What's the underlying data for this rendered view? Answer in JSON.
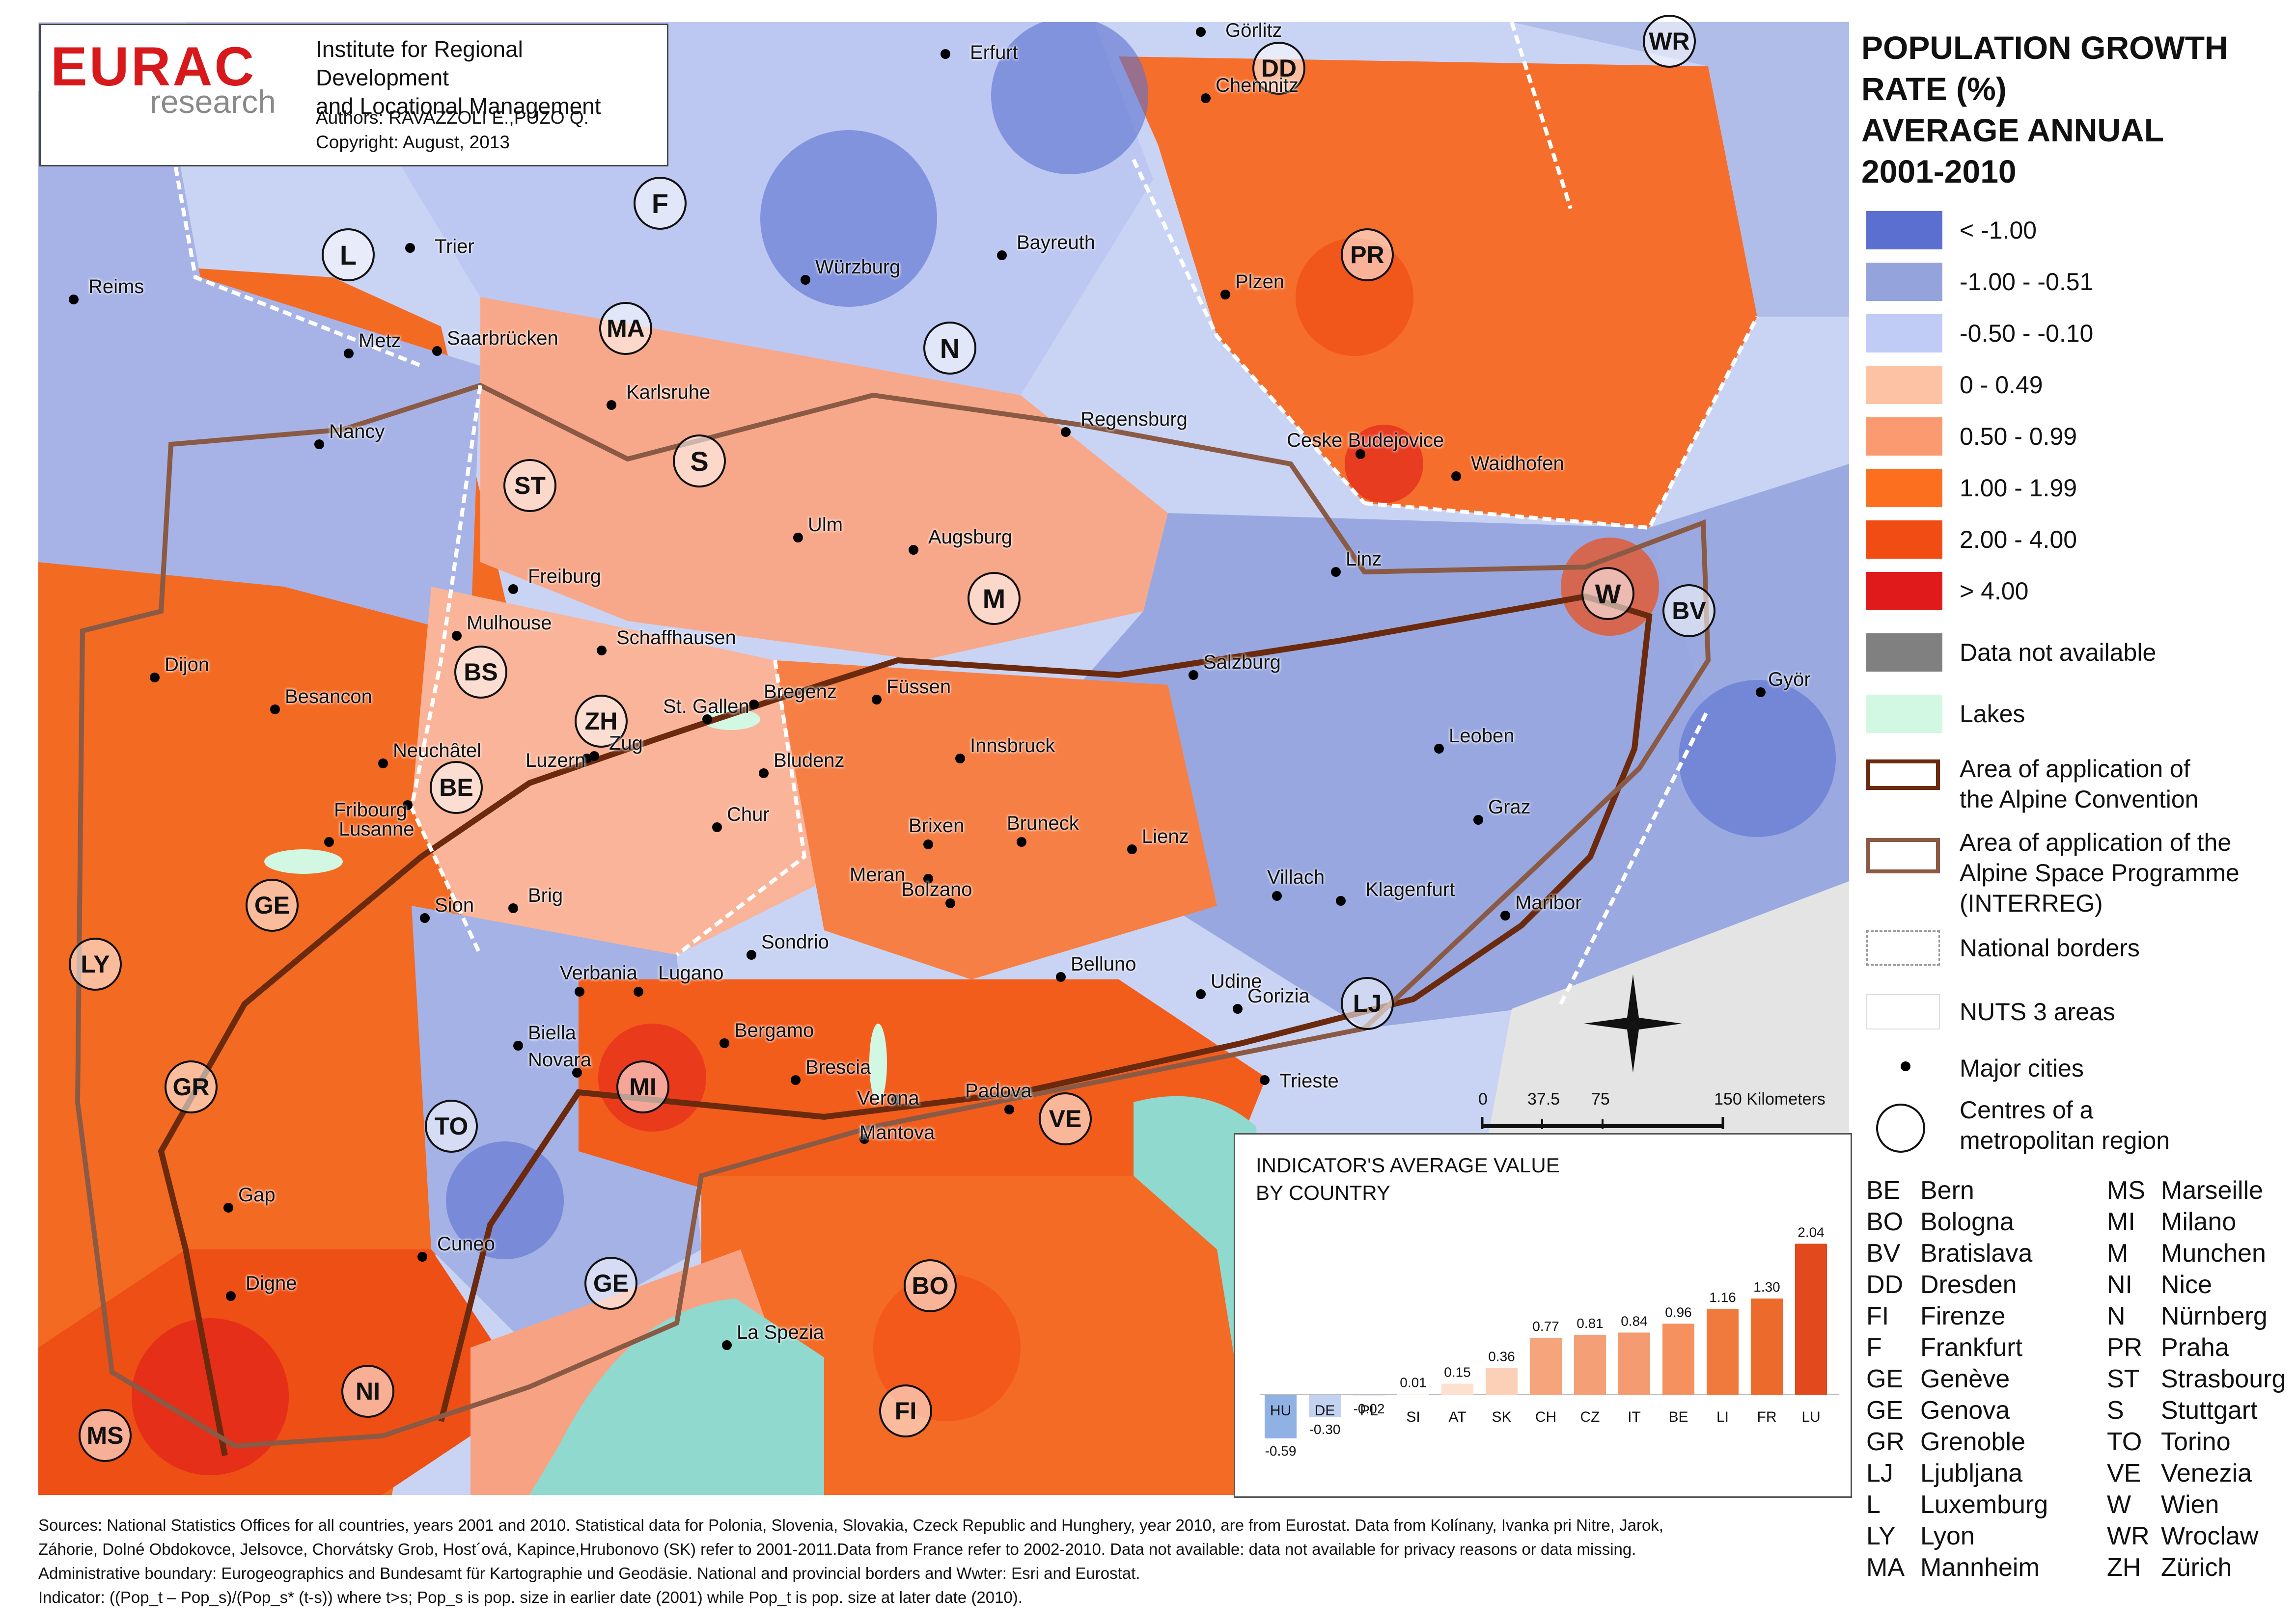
{
  "header": {
    "logo": "EURAC",
    "logo_sub": "research",
    "institute_line1": "Institute for Regional Development",
    "institute_line2": "and Locational Management",
    "authors": "Authors: RAVAZZOLI E.,PUZO Q.",
    "copyright": "Copyright: August, 2013"
  },
  "legend": {
    "title_lines": [
      "POPULATION GROWTH",
      "RATE (%)",
      "AVERAGE ANNUAL",
      "2001-2010"
    ],
    "classes": [
      {
        "label": "< -1.00",
        "color": "#5b6fd1"
      },
      {
        "label": "-1.00 - -0.51",
        "color": "#94a3dc"
      },
      {
        "label": "-0.50 - -0.10",
        "color": "#c0ccf5"
      },
      {
        "label": "0  - 0.49",
        "color": "#fcc2a3"
      },
      {
        "label": "0.50 - 0.99",
        "color": "#fb9a70"
      },
      {
        "label": "1.00 - 1.99",
        "color": "#fb6f1f"
      },
      {
        "label": "2.00 - 4.00",
        "color": "#f04c14"
      },
      {
        "label": "> 4.00",
        "color": "#e01a1a"
      },
      {
        "label": "Data not available",
        "color": "#808080"
      },
      {
        "label": "Lakes",
        "color": "#d2f7e2"
      }
    ],
    "alpine_convention_line1": "Area of application of",
    "alpine_convention_line2": "the Alpine Convention",
    "alpine_space_line1": "Area of application of the",
    "alpine_space_line2": "Alpine Space Programme",
    "alpine_space_line3": "(INTERREG)",
    "national_borders": "National borders",
    "nuts3": "NUTS 3 areas",
    "major_cities": "Major cities",
    "metro_centres_line1": "Centres of a",
    "metro_centres_line2": "metropolitan region",
    "colors": {
      "alpine_convention": "#6b2a0d",
      "alpine_space": "#8a5a45"
    }
  },
  "abbreviations_left": [
    {
      "code": "BE",
      "name": "Bern"
    },
    {
      "code": "BO",
      "name": "Bologna"
    },
    {
      "code": "BV",
      "name": "Bratislava"
    },
    {
      "code": "DD",
      "name": "Dresden"
    },
    {
      "code": "FI",
      "name": "Firenze"
    },
    {
      "code": "F",
      "name": "Frankfurt"
    },
    {
      "code": "GE",
      "name": "Genève"
    },
    {
      "code": "GE",
      "name": "Genova"
    },
    {
      "code": "GR",
      "name": "Grenoble"
    },
    {
      "code": "LJ",
      "name": "Ljubljana"
    },
    {
      "code": "L",
      "name": "Luxemburg"
    },
    {
      "code": "LY",
      "name": "Lyon"
    },
    {
      "code": "MA",
      "name": "Mannheim"
    }
  ],
  "abbreviations_right": [
    {
      "code": "MS",
      "name": "Marseille"
    },
    {
      "code": "MI",
      "name": "Milano"
    },
    {
      "code": "M",
      "name": "Munchen"
    },
    {
      "code": "NI",
      "name": "Nice"
    },
    {
      "code": "N",
      "name": "Nürnberg"
    },
    {
      "code": "PR",
      "name": "Praha"
    },
    {
      "code": "ST",
      "name": "Strasbourg"
    },
    {
      "code": "S",
      "name": "Stuttgart"
    },
    {
      "code": "TO",
      "name": "Torino"
    },
    {
      "code": "VE",
      "name": "Venezia"
    },
    {
      "code": "W",
      "name": "Wien"
    },
    {
      "code": "WR",
      "name": "Wroclaw"
    },
    {
      "code": "ZH",
      "name": "Zürich"
    }
  ],
  "scale_bar": {
    "ticks": [
      "0",
      "37.5",
      "75",
      "150 Kilometers"
    ]
  },
  "metro_centres": [
    "DD",
    "WR",
    "F",
    "L",
    "MA",
    "N",
    "PR",
    "ST",
    "S",
    "M",
    "W",
    "BV",
    "BS",
    "ZH",
    "BE",
    "GE",
    "LY",
    "GR",
    "MI",
    "TO",
    "VE",
    "LJ",
    "GE",
    "BO",
    "NI",
    "FI",
    "MS"
  ],
  "cities": [
    "Erfurt",
    "Görlitz",
    "Chemnitz",
    "Trier",
    "Bayreuth",
    "Würzburg",
    "Plzen",
    "Reims",
    "Metz",
    "Saarbrücken",
    "Karlsruhe",
    "Regensburg",
    "Nancy",
    "Ceske Budejovice",
    "Waidhofen",
    "Ulm",
    "Augsburg",
    "Linz",
    "Freiburg",
    "Mulhouse",
    "Schaffhausen",
    "Salzburg",
    "Dijon",
    "Besancon",
    "Bregenz",
    "Füssen",
    "St. Gallen",
    "Györ",
    "Neuchâtel",
    "Luzern",
    "Zug",
    "Bludenz",
    "Innsbruck",
    "Leoben",
    "Fribourg",
    "Chur",
    "Graz",
    "Lusanne",
    "Brixen",
    "Bruneck",
    "Lienz",
    "Meran",
    "Villach",
    "Klagenfurt",
    "Sion",
    "Brig",
    "Bolzano",
    "Maribor",
    "Sondrio",
    "Belluno",
    "Verbania",
    "Lugano",
    "Udine",
    "Gorizia",
    "Biella",
    "Bergamo",
    "Trieste",
    "Novara",
    "Brescia",
    "Verona",
    "Padova",
    "Mantova",
    "Gap",
    "Cuneo",
    "Digne",
    "La Spezia"
  ],
  "inset": {
    "title_line1": "INDICATOR'S AVERAGE VALUE",
    "title_line2": "BY COUNTRY"
  },
  "chart_data": {
    "type": "bar",
    "title": "INDICATOR'S AVERAGE VALUE BY COUNTRY",
    "categories": [
      "HU",
      "DE",
      "PL",
      "SI",
      "AT",
      "SK",
      "CH",
      "CZ",
      "IT",
      "BE",
      "LI",
      "FR",
      "LU"
    ],
    "values": [
      -0.59,
      -0.3,
      -0.02,
      0.01,
      0.15,
      0.36,
      0.77,
      0.81,
      0.84,
      0.96,
      1.16,
      1.3,
      2.04
    ],
    "value_labels": [
      "-0.59",
      "-0.30",
      "-0.02",
      "0.01",
      "0.15",
      "0.36",
      "0.77",
      "0.81",
      "0.84",
      "0.96",
      "1.16",
      "1.30",
      "2.04"
    ],
    "colors": [
      "#8fb1e3",
      "#c3d2f1",
      "#e9eef9",
      "#fff2ea",
      "#fde0cf",
      "#fcd0b6",
      "#f6a47b",
      "#f59f76",
      "#f59b71",
      "#f4915f",
      "#f07a3e",
      "#ec6a2c",
      "#e24a1e"
    ],
    "xlabel": "",
    "ylabel": "",
    "ylim": [
      -0.6,
      2.1
    ]
  },
  "sources": [
    "Sources: National Statistics Offices for all countries, years 2001 and 2010. Statistical data for Polonia, Slovenia, Slovakia, Czeck Republic and Hunghery, year 2010, are from Eurostat. Data from Kolínany, Ivanka pri Nitre, Jarok,",
    "Záhorie, Dolné Obdokovce, Jelsovce, Chorvátsky Grob, Host´ová, Kapince,Hrubonovo (SK) refer to 2001-2011.Data from France refer to 2002-2010. Data not available: data not available for privacy reasons or data missing.",
    "Administrative boundary: Eurogeographics and Bundesamt für Kartographie und Geodäsie. National and provincial borders and Wwter: Esri and Eurostat.",
    "Indicator: ((Pop_t – Pop_s)/(Pop_s* (t-s)) where t>s; Pop_s is pop. size in earlier date (2001) while Pop_t is pop. size at later date (2010)."
  ]
}
